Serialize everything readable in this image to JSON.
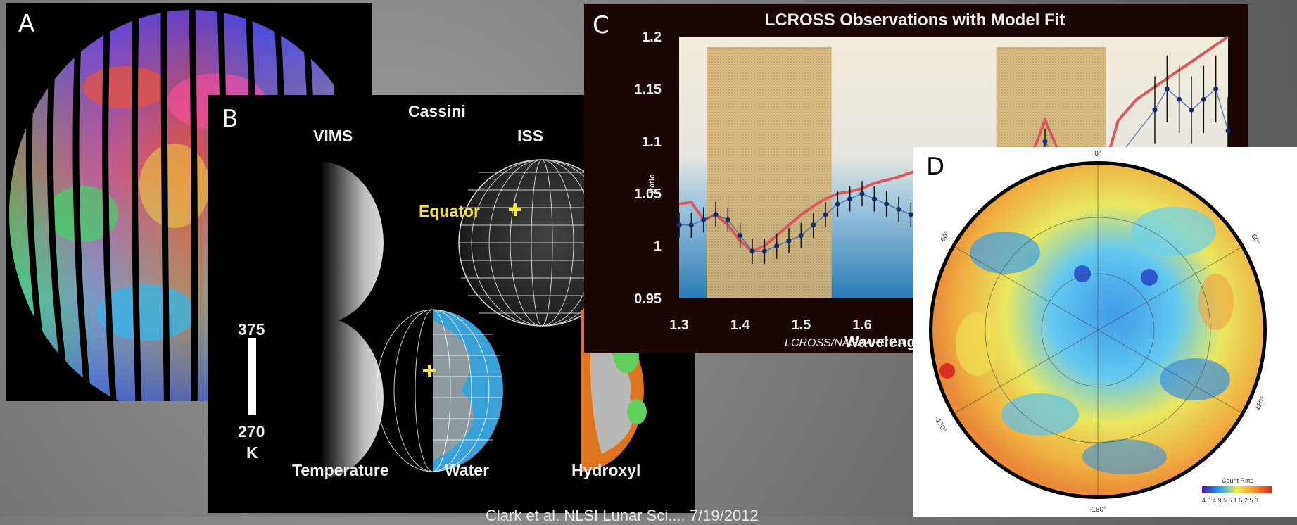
{
  "panels": {
    "a": {
      "label": "A"
    },
    "b": {
      "label": "B",
      "title": "Cassini",
      "col_vims": "VIMS",
      "col_iss": "ISS",
      "equator_label": "Equator",
      "scale_max": "375",
      "scale_min": "270",
      "scale_unit": "K",
      "caption_temperature": "Temperature",
      "caption_water": "Water",
      "caption_hydroxyl": "Hydroxyl"
    },
    "c": {
      "label": "C",
      "credit": "LCROSS/NASAARC / A. Colaprete"
    },
    "d": {
      "label": "D",
      "angle_top": "0°",
      "angle_left_upper": "-60°",
      "angle_right_upper": "60°",
      "angle_left_lower": "-120°",
      "angle_right_lower": "120°",
      "angle_bottom": "-180°",
      "legend_title": "Count Rate",
      "legend_ticks": "4.8 4.9 5 5.1 5.2 5.3"
    }
  },
  "footer": "Clark et al. NLSI Lunar Sci.... 7/19/2012",
  "chart_data": {
    "type": "line",
    "title": "LCROSS Observations with Model Fit",
    "xlabel": "Wavelength",
    "ylabel": "Ratio",
    "xlim": [
      1.3,
      2.2
    ],
    "ylim": [
      0.95,
      1.2
    ],
    "xticks": [
      "1.3",
      "1.4",
      "1.5",
      "1.6",
      "1"
    ],
    "yticks": [
      "0.95",
      "1",
      "1.05",
      "1.1",
      "1.15",
      "1.2"
    ],
    "shaded_bands": [
      [
        1.345,
        1.55
      ],
      [
        1.82,
        2.0
      ]
    ],
    "series": [
      {
        "x": [
          1.3,
          1.32,
          1.34,
          1.36,
          1.38,
          1.4,
          1.42,
          1.44,
          1.46,
          1.48,
          1.5,
          1.52,
          1.54,
          1.56,
          1.58,
          1.6,
          1.62,
          1.64,
          1.66,
          1.68,
          1.7,
          1.75,
          1.8,
          1.85,
          1.88,
          1.9,
          1.93,
          1.95,
          1.97,
          2.0,
          2.02,
          2.05,
          2.1,
          2.15,
          2.2
        ],
        "y": [
          1.04,
          1.042,
          1.025,
          1.03,
          1.02,
          1.005,
          0.995,
          1.0,
          1.01,
          1.02,
          1.03,
          1.038,
          1.045,
          1.05,
          1.052,
          1.055,
          1.06,
          1.063,
          1.066,
          1.07,
          1.073,
          1.078,
          1.082,
          1.085,
          1.09,
          1.12,
          1.08,
          1.085,
          1.07,
          1.08,
          1.12,
          1.14,
          1.16,
          1.18,
          1.2
        ]
      },
      {
        "x": [
          1.3,
          1.32,
          1.34,
          1.36,
          1.38,
          1.4,
          1.42,
          1.44,
          1.46,
          1.48,
          1.5,
          1.52,
          1.54,
          1.56,
          1.58,
          1.6,
          1.62,
          1.64,
          1.66,
          1.68,
          1.7,
          1.72,
          1.74,
          1.76,
          1.88,
          1.9,
          1.92,
          1.94,
          1.96,
          1.98,
          2.0,
          2.08,
          2.1,
          2.12,
          2.14,
          2.16,
          2.18,
          2.2
        ],
        "y": [
          1.02,
          1.02,
          1.025,
          1.03,
          1.025,
          1.01,
          0.995,
          0.995,
          1.0,
          1.005,
          1.01,
          1.02,
          1.03,
          1.04,
          1.045,
          1.05,
          1.045,
          1.04,
          1.035,
          1.03,
          1.032,
          1.028,
          1.03,
          1.025,
          1.06,
          1.1,
          1.08,
          1.07,
          1.065,
          1.07,
          1.07,
          1.13,
          1.15,
          1.14,
          1.13,
          1.14,
          1.15,
          1.11
        ]
      }
    ]
  }
}
